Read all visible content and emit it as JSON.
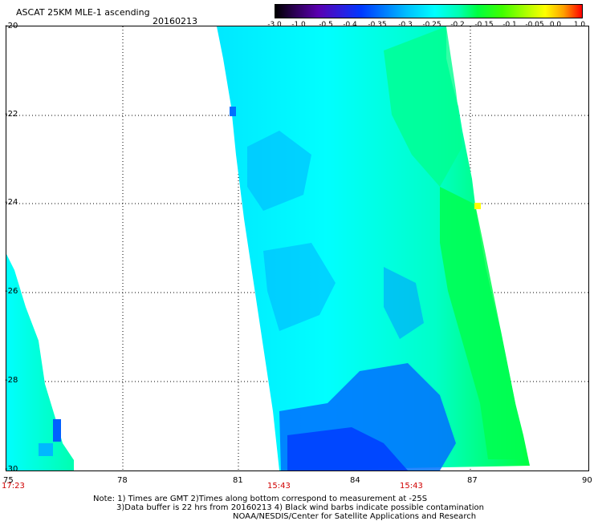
{
  "header": {
    "title": "ASCAT 25KM MLE-1 ascending",
    "date": "20160213"
  },
  "colorbar": {
    "labels": [
      "-3.0",
      "-1.0",
      "-0.5",
      "-0.4",
      "-0.35",
      "-0.3",
      "-0.25",
      "-0.2",
      "-0.15",
      "-0.1",
      "-0.05",
      "0.0",
      "1.0"
    ]
  },
  "map": {
    "lon_ticks": [
      "75",
      "78",
      "81",
      "84",
      "87",
      "90"
    ],
    "lat_ticks": [
      "-20",
      "-22",
      "-24",
      "-26",
      "-28",
      "-30"
    ],
    "time_labels": [
      "17:23",
      "15:43",
      "15:43"
    ],
    "colors": {
      "deep_blue": "#0038ff",
      "blue": "#00a0ff",
      "cyan": "#00ffff",
      "seafoam": "#00ffb0",
      "green": "#00ff40",
      "yellow": "#ffff00"
    }
  },
  "notes": {
    "line1": "Note: 1) Times are GMT 2)Times along bottom correspond to measurement at -25S",
    "line2": "3)Data buffer is 22 hrs from 20160213 4) Black wind barbs indicate possible contamination",
    "line3": "NOAA/NESDIS/Center for Satellite Applications and Research"
  }
}
